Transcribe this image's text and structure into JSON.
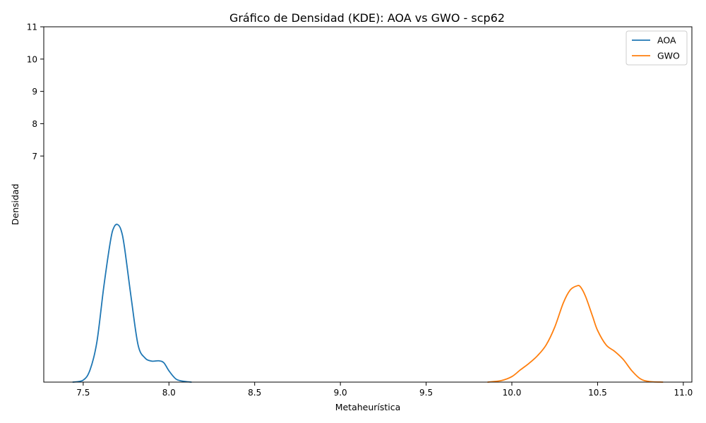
{
  "chart_data": {
    "type": "line",
    "title": "Gráfico de Densidad (KDE): AOA vs GWO - scp62",
    "xlabel": "Metaheurística",
    "ylabel": "Densidad",
    "xlim": [
      7.27,
      11.05
    ],
    "ylim": [
      0,
      11
    ],
    "x_ticks": [
      7.5,
      8.0,
      8.5,
      9.0,
      9.5,
      10.0,
      10.5,
      11.0
    ],
    "x_tick_labels": [
      "7.5",
      "8.0",
      "8.5",
      "9.0",
      "9.5",
      "10.0",
      "10.5",
      "11.0"
    ],
    "y_ticks": [
      7,
      8,
      9,
      10,
      11
    ],
    "y_tick_labels": [
      "7",
      "8",
      "9",
      "10",
      "11"
    ],
    "grid": false,
    "legend_position": "top-right",
    "series": [
      {
        "name": "AOA",
        "color": "#1f77b4",
        "x": [
          7.44,
          7.5,
          7.54,
          7.58,
          7.62,
          7.66,
          7.68,
          7.7,
          7.72,
          7.74,
          7.78,
          7.82,
          7.86,
          7.9,
          7.94,
          7.97,
          8.0,
          8.04,
          8.08,
          8.13
        ],
        "y": [
          0.0,
          0.06,
          0.38,
          1.25,
          2.95,
          4.4,
          4.8,
          4.88,
          4.72,
          4.2,
          2.6,
          1.15,
          0.75,
          0.65,
          0.66,
          0.6,
          0.35,
          0.1,
          0.03,
          0.0
        ]
      },
      {
        "name": "GWO",
        "color": "#ff7f0e",
        "x": [
          9.86,
          9.94,
          10.0,
          10.05,
          10.1,
          10.15,
          10.2,
          10.25,
          10.3,
          10.34,
          10.38,
          10.4,
          10.43,
          10.47,
          10.5,
          10.55,
          10.6,
          10.65,
          10.7,
          10.75,
          10.8,
          10.88
        ],
        "y": [
          0.0,
          0.05,
          0.17,
          0.38,
          0.58,
          0.82,
          1.15,
          1.7,
          2.45,
          2.85,
          2.98,
          2.95,
          2.65,
          2.05,
          1.6,
          1.15,
          0.95,
          0.7,
          0.35,
          0.1,
          0.02,
          0.0
        ]
      }
    ]
  }
}
